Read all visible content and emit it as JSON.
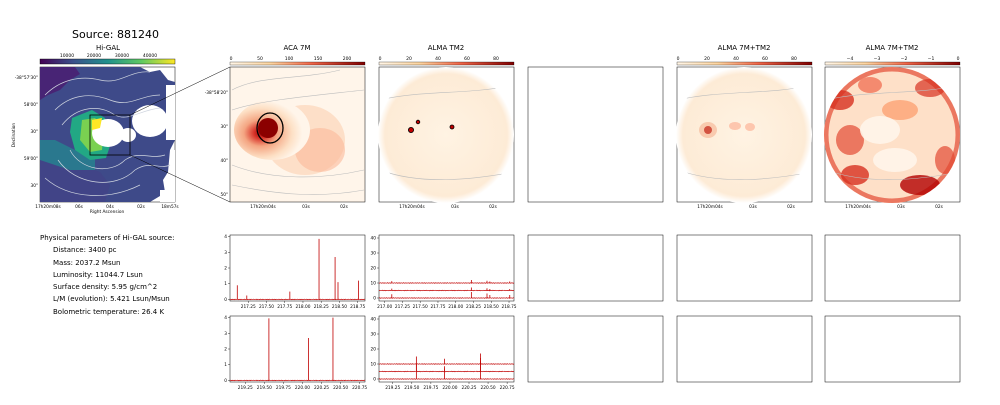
{
  "source_title": "Source: 881240",
  "panels": {
    "higal": {
      "title": "Hi-GAL",
      "colorbar_ticks": [
        "10000",
        "20000",
        "30000",
        "40000"
      ],
      "ylabel": "Declination",
      "xlabel": "Right Ascension",
      "yticks": [
        "-38°57'30\"",
        "58'00\"",
        "30\"",
        "59'00\"",
        "30\""
      ],
      "xticks": [
        "17h20m08s",
        "06s",
        "04s",
        "02s",
        "18m57s"
      ]
    },
    "aca": {
      "title": "ACA 7M",
      "colorbar_ticks": [
        "0",
        "50",
        "100",
        "150",
        "200"
      ],
      "yticks": [
        "-38°58'20\"",
        "30\"",
        "40\"",
        "50\""
      ],
      "xticks": [
        "17h20m04s",
        "03s",
        "02s"
      ]
    },
    "tm2": {
      "title": "ALMA TM2",
      "colorbar_ticks": [
        "0",
        "20",
        "40",
        "60",
        "80"
      ],
      "xticks": [
        "17h20m04s",
        "03s",
        "02s"
      ]
    },
    "combo": {
      "title": "ALMA 7M+TM2",
      "colorbar_ticks": [
        "0",
        "20",
        "40",
        "60",
        "80"
      ],
      "xticks": [
        "17h20m04s",
        "03s",
        "02s"
      ]
    },
    "combo_log": {
      "title": "ALMA 7M+TM2",
      "colorbar_ticks": [
        "−4",
        "−3",
        "−2",
        "−1",
        "0"
      ],
      "xticks": [
        "17h20m04s",
        "03s",
        "02s"
      ]
    }
  },
  "params": {
    "header": "Physical parameters of Hi-GAL source:",
    "distance": "Distance: 3400 pc",
    "mass": "Mass: 2037.2 Msun",
    "luminosity": "Luminosity: 11044.7 Lsun",
    "surface_density": "Surface density: 5.95 g/cm^2",
    "lm": "L/M (evolution): 5.421 Lsun/Msun",
    "tbol": "Bolometric temperature: 26.4 K"
  },
  "chart_data": [
    {
      "type": "line",
      "title": "",
      "panel": "aca-spectrum-1",
      "xlim": [
        217.0,
        218.85
      ],
      "ylim": [
        -0.1,
        4.1
      ],
      "xticks": [
        "217.25",
        "217.50",
        "217.75",
        "218.00",
        "218.25",
        "218.50",
        "218.75"
      ],
      "yticks": [
        "0",
        "1",
        "2",
        "3",
        "4"
      ],
      "series": [
        {
          "peaks": [
            [
              217.1,
              0.9
            ],
            [
              217.23,
              0.25
            ],
            [
              217.82,
              0.5
            ],
            [
              218.22,
              3.85
            ],
            [
              218.44,
              2.7
            ],
            [
              218.48,
              1.1
            ],
            [
              218.76,
              1.2
            ]
          ]
        }
      ]
    },
    {
      "type": "line",
      "title": "",
      "panel": "aca-spectrum-2",
      "xlim": [
        219.05,
        220.82
      ],
      "ylim": [
        -0.1,
        4.1
      ],
      "xticks": [
        "219.25",
        "219.50",
        "219.75",
        "220.00",
        "220.25",
        "220.50",
        "220.75"
      ],
      "yticks": [
        "0",
        "1",
        "2",
        "3",
        "4"
      ],
      "series": [
        {
          "peaks": [
            [
              219.56,
              3.95
            ],
            [
              220.08,
              2.7
            ],
            [
              220.4,
              4.0
            ]
          ]
        }
      ]
    },
    {
      "type": "line",
      "title": "",
      "panel": "tm2-spectrum-1",
      "xlim": [
        216.92,
        218.82
      ],
      "ylim": [
        -2,
        42
      ],
      "xticks": [
        "217.00",
        "217.25",
        "217.50",
        "217.75",
        "218.00",
        "218.25",
        "218.50",
        "218.75"
      ],
      "yticks": [
        "0",
        "10",
        "20",
        "30",
        "40"
      ],
      "series": [
        {
          "offsets": [
            0,
            5,
            10
          ],
          "peaks": [
            [
              217.1,
              2.5
            ],
            [
              218.22,
              4.0
            ],
            [
              218.44,
              3.0
            ],
            [
              218.48,
              2.0
            ],
            [
              218.76,
              2.0
            ]
          ]
        }
      ]
    },
    {
      "type": "line",
      "title": "",
      "panel": "tm2-spectrum-2",
      "xlim": [
        219.07,
        220.84
      ],
      "ylim": [
        -2,
        42
      ],
      "xticks": [
        "219.25",
        "219.50",
        "219.75",
        "220.00",
        "220.25",
        "220.50",
        "220.75"
      ],
      "yticks": [
        "0",
        "10",
        "20",
        "30",
        "40"
      ],
      "series": [
        {
          "offsets": [
            0,
            5,
            10
          ],
          "peaks": [
            [
              219.56,
              10.0
            ],
            [
              219.93,
              7.0
            ],
            [
              220.4,
              14.0
            ]
          ]
        }
      ]
    }
  ],
  "colors": {
    "line": "#c00000",
    "cmap_hot_low": "#fff5e6",
    "cmap_hot_high": "#8b0000",
    "viridis_low": "#440154",
    "viridis_high": "#fde725"
  }
}
